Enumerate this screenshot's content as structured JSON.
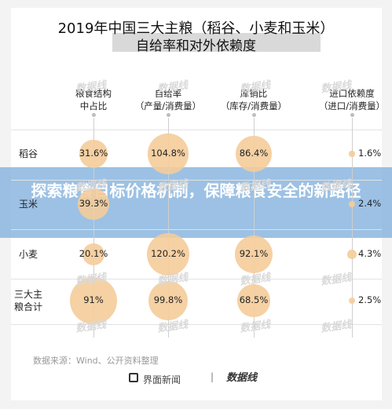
{
  "header": {
    "title_line1": "2019年中国三大主粮（稻谷、小麦和玉米）",
    "title_line2": "自给率和对外依赖度"
  },
  "overlay": {
    "text": "探索粮食目标价格机制，保障粮食安全的新路径"
  },
  "source": "数据来源：Wind、公开资料整理",
  "footer": {
    "brand1": "界面新闻",
    "separator": "|",
    "brand2": "数据线"
  },
  "watermark": "数据线",
  "chart_data": {
    "type": "bubble-table",
    "columns": [
      {
        "line1": "粮食结构",
        "line2": "中占比"
      },
      {
        "line1": "自给率",
        "line2": "（产量/消费量）"
      },
      {
        "line1": "库销比",
        "line2": "（库存/消费量）"
      },
      {
        "line1": "进口依赖度",
        "line2": "（进口/消费量）"
      }
    ],
    "rows": [
      {
        "label_line1": "稻谷",
        "label_line2": "",
        "values": [
          "31.6%",
          "104.8%",
          "86.4%",
          "1.6%"
        ],
        "numbers": [
          31.6,
          104.8,
          86.4,
          1.6
        ]
      },
      {
        "label_line1": "玉米",
        "label_line2": "",
        "values": [
          "39.3%",
          "",
          "",
          "2.4%"
        ],
        "numbers": [
          39.3,
          null,
          null,
          2.4
        ]
      },
      {
        "label_line1": "小麦",
        "label_line2": "",
        "values": [
          "20.1%",
          "120.2%",
          "92.1%",
          "4.3%"
        ],
        "numbers": [
          20.1,
          120.2,
          92.1,
          4.3
        ]
      },
      {
        "label_line1": "三大主",
        "label_line2": "粮合计",
        "values": [
          "91%",
          "99.8%",
          "68.5%",
          "2.5%"
        ],
        "numbers": [
          91,
          99.8,
          68.5,
          2.5
        ]
      }
    ],
    "bubble_color": "#f4cc9a"
  }
}
